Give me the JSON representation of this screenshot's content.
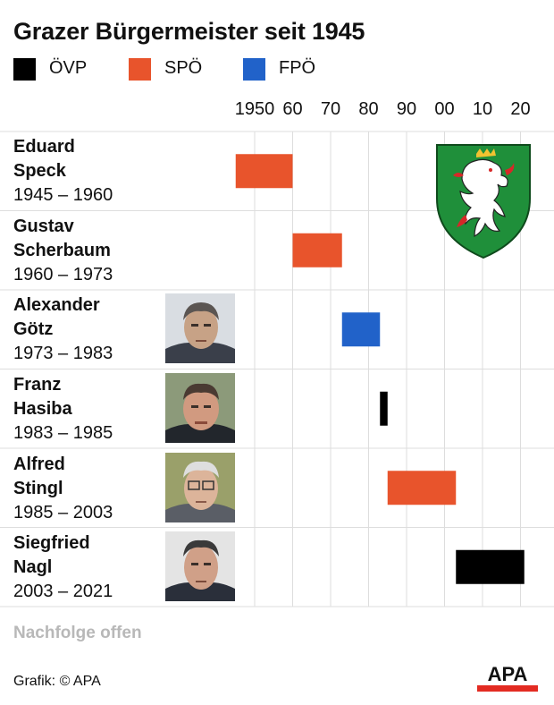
{
  "title": "Grazer Bürgermeister seit 1945",
  "legend": [
    {
      "label": "ÖVP",
      "color": "#000000"
    },
    {
      "label": "SPÖ",
      "color": "#e8542c"
    },
    {
      "label": "FPÖ",
      "color": "#2162c9"
    }
  ],
  "chart_data": {
    "type": "bar",
    "subtype": "timeline-gantt",
    "title": "Grazer Bürgermeister seit 1945",
    "x_tick_labels": [
      "1950",
      "60",
      "70",
      "80",
      "90",
      "00",
      "10",
      "20"
    ],
    "x_tick_values": [
      1950,
      1960,
      1970,
      1980,
      1990,
      2000,
      2010,
      2020
    ],
    "xlim": [
      1941,
      2024
    ],
    "grid": true,
    "legend_position": "top-left",
    "series": [
      {
        "name": "ÖVP",
        "color": "#000000"
      },
      {
        "name": "SPÖ",
        "color": "#e8542c"
      },
      {
        "name": "FPÖ",
        "color": "#2162c9"
      }
    ],
    "rows": [
      {
        "first": "Eduard",
        "last": "Speck",
        "years": "1945 – 1960",
        "start": 1945,
        "end": 1960,
        "party": "SPÖ",
        "photo": false
      },
      {
        "first": "Gustav",
        "last": "Scherbaum",
        "years": "1960 – 1973",
        "start": 1960,
        "end": 1973,
        "party": "SPÖ",
        "photo": false
      },
      {
        "first": "Alexander",
        "last": "Götz",
        "years": "1973 – 1983",
        "start": 1973,
        "end": 1983,
        "party": "FPÖ",
        "photo": true
      },
      {
        "first": "Franz",
        "last": "Hasiba",
        "years": "1983 – 1985",
        "start": 1983,
        "end": 1985,
        "party": "ÖVP",
        "photo": true
      },
      {
        "first": "Alfred",
        "last": "Stingl",
        "years": "1985 – 2003",
        "start": 1985,
        "end": 2003,
        "party": "SPÖ",
        "photo": true
      },
      {
        "first": "Siegfried",
        "last": "Nagl",
        "years": "2003 – 2021",
        "start": 2003,
        "end": 2021,
        "party": "ÖVP",
        "photo": true
      }
    ]
  },
  "footer": {
    "successor": "Nachfolge offen",
    "credit": "Grafik: © APA",
    "logo": "APA"
  },
  "crest_icon": "styria-coat-of-arms-icon"
}
